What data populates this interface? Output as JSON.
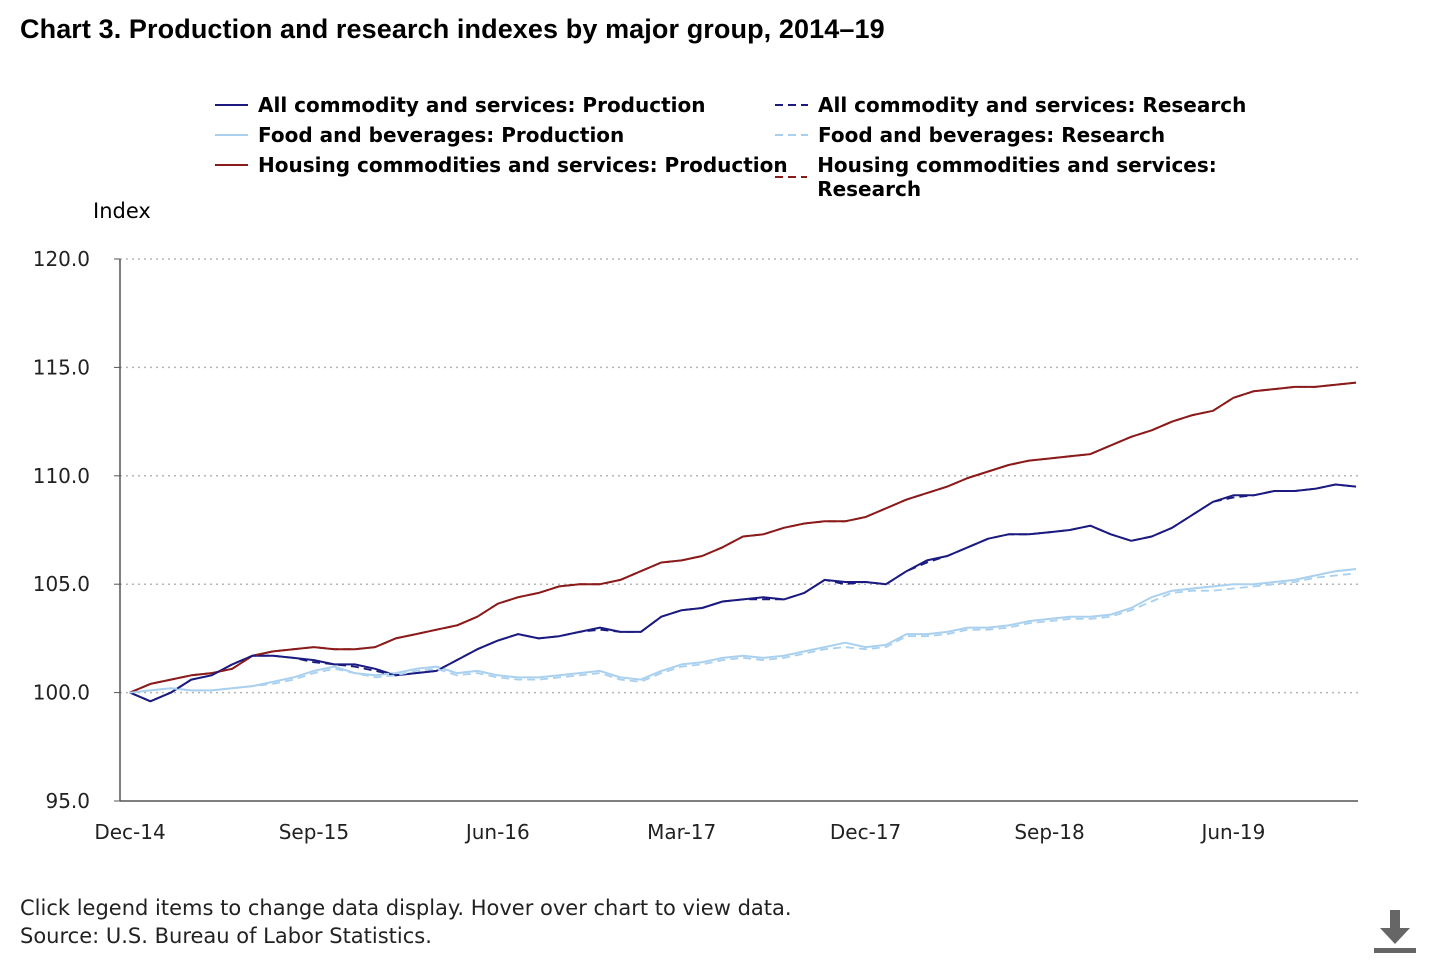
{
  "title": "Chart 3. Production and research indexes by major group, 2014–19",
  "footer": {
    "instruction": "Click legend items to change data display. Hover over chart to view data.",
    "source": "Source: U.S. Bureau of Labor Statistics."
  },
  "download_icon": "download-icon",
  "colors": {
    "all_commodity": "#1a1a80",
    "food": "#a9d0ee",
    "housing": "#8b1a1a",
    "grid": "#b5b5b5",
    "axis": "#555555"
  },
  "chart_data": {
    "type": "line",
    "ylabel": "Index",
    "xlabel": "",
    "ylim": [
      95,
      120
    ],
    "yticks": [
      "95.0",
      "100.0",
      "105.0",
      "110.0",
      "115.0",
      "120.0"
    ],
    "xticks": [
      "Dec-14",
      "Sep-15",
      "Jun-16",
      "Mar-17",
      "Dec-17",
      "Sep-18",
      "Jun-19"
    ],
    "x_start": "Dec-14",
    "x": [
      "Dec-14",
      "Jan-15",
      "Feb-15",
      "Mar-15",
      "Apr-15",
      "May-15",
      "Jun-15",
      "Jul-15",
      "Aug-15",
      "Sep-15",
      "Oct-15",
      "Nov-15",
      "Dec-15",
      "Jan-16",
      "Feb-16",
      "Mar-16",
      "Apr-16",
      "May-16",
      "Jun-16",
      "Jul-16",
      "Aug-16",
      "Sep-16",
      "Oct-16",
      "Nov-16",
      "Dec-16",
      "Jan-17",
      "Feb-17",
      "Mar-17",
      "Apr-17",
      "May-17",
      "Jun-17",
      "Jul-17",
      "Aug-17",
      "Sep-17",
      "Oct-17",
      "Nov-17",
      "Dec-17",
      "Jan-18",
      "Feb-18",
      "Mar-18",
      "Apr-18",
      "May-18",
      "Jun-18",
      "Jul-18",
      "Aug-18",
      "Sep-18",
      "Oct-18",
      "Nov-18",
      "Dec-18",
      "Jan-19",
      "Feb-19",
      "Mar-19",
      "Apr-19",
      "May-19",
      "Jun-19",
      "Jul-19",
      "Aug-19",
      "Sep-19",
      "Oct-19",
      "Nov-19",
      "Dec-19"
    ],
    "grid": true,
    "legend_position": "top",
    "series": [
      {
        "name": "All commodity and services: Production",
        "color_key": "all_commodity",
        "dashed": false,
        "values": [
          100.0,
          99.6,
          100.0,
          100.6,
          100.8,
          101.3,
          101.7,
          101.7,
          101.6,
          101.5,
          101.3,
          101.3,
          101.1,
          100.8,
          100.9,
          101.0,
          101.5,
          102.0,
          102.4,
          102.7,
          102.5,
          102.6,
          102.8,
          103.0,
          102.8,
          102.8,
          103.5,
          103.8,
          103.9,
          104.2,
          104.3,
          104.4,
          104.3,
          104.6,
          105.2,
          105.1,
          105.1,
          105.0,
          105.6,
          106.1,
          106.3,
          106.7,
          107.1,
          107.3,
          107.3,
          107.4,
          107.5,
          107.7,
          107.3,
          107.0,
          107.2,
          107.6,
          108.2,
          108.8,
          109.1,
          109.1,
          109.3,
          109.3,
          109.4,
          109.6,
          109.5
        ]
      },
      {
        "name": "All commodity and services: Research",
        "color_key": "all_commodity",
        "dashed": true,
        "values": [
          100.0,
          99.6,
          100.0,
          100.6,
          100.8,
          101.3,
          101.7,
          101.7,
          101.6,
          101.4,
          101.3,
          101.2,
          101.0,
          100.8,
          100.9,
          101.0,
          101.5,
          102.0,
          102.4,
          102.7,
          102.5,
          102.6,
          102.8,
          102.9,
          102.8,
          102.8,
          103.5,
          103.8,
          103.9,
          104.2,
          104.3,
          104.3,
          104.3,
          104.6,
          105.2,
          105.0,
          105.1,
          105.0,
          105.6,
          106.0,
          106.3,
          106.7,
          107.1,
          107.3,
          107.3,
          107.4,
          107.5,
          107.7,
          107.3,
          107.0,
          107.2,
          107.6,
          108.2,
          108.8,
          109.0,
          109.1,
          109.3,
          109.3,
          109.4,
          109.6,
          109.5
        ]
      },
      {
        "name": "Food and beverages: Production",
        "color_key": "food",
        "dashed": false,
        "values": [
          100.0,
          100.1,
          100.2,
          100.1,
          100.1,
          100.2,
          100.3,
          100.5,
          100.7,
          101.0,
          101.2,
          100.9,
          100.8,
          100.9,
          101.1,
          101.2,
          100.9,
          101.0,
          100.8,
          100.7,
          100.7,
          100.8,
          100.9,
          101.0,
          100.7,
          100.6,
          101.0,
          101.3,
          101.4,
          101.6,
          101.7,
          101.6,
          101.7,
          101.9,
          102.1,
          102.3,
          102.1,
          102.2,
          102.7,
          102.7,
          102.8,
          103.0,
          103.0,
          103.1,
          103.3,
          103.4,
          103.5,
          103.5,
          103.6,
          103.9,
          104.4,
          104.7,
          104.8,
          104.9,
          105.0,
          105.0,
          105.1,
          105.2,
          105.4,
          105.6,
          105.7
        ]
      },
      {
        "name": "Food and beverages: Research",
        "color_key": "food",
        "dashed": true,
        "values": [
          100.0,
          100.1,
          100.2,
          100.1,
          100.1,
          100.2,
          100.3,
          100.4,
          100.6,
          100.9,
          101.1,
          100.9,
          100.7,
          100.8,
          101.0,
          101.1,
          100.8,
          100.9,
          100.7,
          100.6,
          100.6,
          100.7,
          100.8,
          100.9,
          100.6,
          100.5,
          100.9,
          101.2,
          101.3,
          101.5,
          101.6,
          101.5,
          101.6,
          101.8,
          102.0,
          102.1,
          102.0,
          102.1,
          102.6,
          102.6,
          102.7,
          102.9,
          102.9,
          103.0,
          103.2,
          103.3,
          103.4,
          103.4,
          103.5,
          103.8,
          104.2,
          104.6,
          104.7,
          104.7,
          104.8,
          104.9,
          105.0,
          105.1,
          105.3,
          105.4,
          105.5
        ]
      },
      {
        "name": "Housing commodities and services: Production",
        "color_key": "housing",
        "dashed": false,
        "values": [
          100.0,
          100.4,
          100.6,
          100.8,
          100.9,
          101.1,
          101.7,
          101.9,
          102.0,
          102.1,
          102.0,
          102.0,
          102.1,
          102.5,
          102.7,
          102.9,
          103.1,
          103.5,
          104.1,
          104.4,
          104.6,
          104.9,
          105.0,
          105.0,
          105.2,
          105.6,
          106.0,
          106.1,
          106.3,
          106.7,
          107.2,
          107.3,
          107.6,
          107.8,
          107.9,
          107.9,
          108.1,
          108.5,
          108.9,
          109.2,
          109.5,
          109.9,
          110.2,
          110.5,
          110.7,
          110.8,
          110.9,
          111.0,
          111.4,
          111.8,
          112.1,
          112.5,
          112.8,
          113.0,
          113.6,
          113.9,
          114.0,
          114.1,
          114.1,
          114.2,
          114.3
        ]
      },
      {
        "name": "Housing commodities and services: Research",
        "color_key": "housing",
        "dashed": true,
        "values": [
          100.0,
          100.4,
          100.6,
          100.8,
          100.9,
          101.1,
          101.7,
          101.9,
          102.0,
          102.1,
          102.0,
          102.0,
          102.1,
          102.5,
          102.7,
          102.9,
          103.1,
          103.5,
          104.1,
          104.4,
          104.6,
          104.9,
          105.0,
          105.0,
          105.2,
          105.6,
          106.0,
          106.1,
          106.3,
          106.7,
          107.2,
          107.3,
          107.6,
          107.8,
          107.9,
          107.9,
          108.1,
          108.5,
          108.9,
          109.2,
          109.5,
          109.9,
          110.2,
          110.5,
          110.7,
          110.8,
          110.9,
          111.0,
          111.4,
          111.8,
          112.1,
          112.5,
          112.8,
          113.0,
          113.6,
          113.9,
          114.0,
          114.1,
          114.1,
          114.2,
          114.3
        ]
      }
    ]
  }
}
